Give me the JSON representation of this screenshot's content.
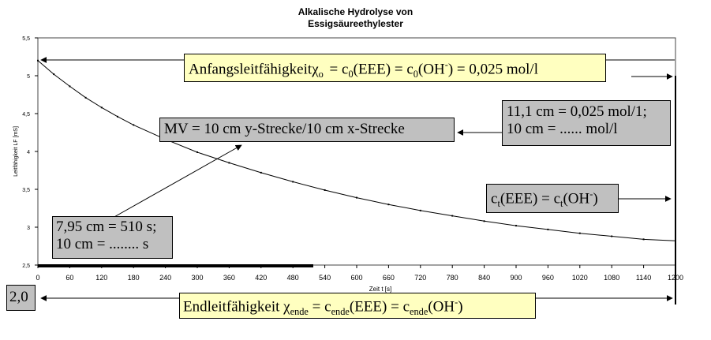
{
  "chart_data": {
    "type": "line",
    "title_lines": [
      "Alkalische Hydrolyse von",
      "Essigsäureethylester"
    ],
    "xlabel": "Zeit t [s]",
    "ylabel": "Leitfähigkeit LF [mS]",
    "xlim": [
      0,
      1200
    ],
    "ylim": [
      2.5,
      5.5
    ],
    "x_ticks": [
      "0",
      "60",
      "120",
      "180",
      "240",
      "300",
      "360",
      "420",
      "480",
      "540",
      "600",
      "660",
      "720",
      "780",
      "840",
      "900",
      "960",
      "1020",
      "1080",
      "1140",
      "1200"
    ],
    "y_ticks": [
      "2,5",
      "3",
      "3,5",
      "4",
      "4,5",
      "5",
      "5,5"
    ],
    "grid": false,
    "legend": "none",
    "series": [
      {
        "x": [
          0,
          30,
          60,
          90,
          120,
          150,
          180,
          240,
          300,
          360,
          420,
          480,
          540,
          600,
          660,
          720,
          780,
          840,
          900,
          960,
          1020,
          1080,
          1140,
          1200
        ],
        "y": [
          5.2,
          5.02,
          4.86,
          4.71,
          4.58,
          4.46,
          4.35,
          4.16,
          3.99,
          3.85,
          3.72,
          3.6,
          3.49,
          3.39,
          3.3,
          3.22,
          3.15,
          3.08,
          3.02,
          2.97,
          2.92,
          2.88,
          2.84,
          2.82
        ]
      }
    ]
  },
  "annotations": {
    "start": {
      "prefix": "Anfangsleitfähigkeit",
      "chi": "χ",
      "chi_sub": "o",
      "eq1": " = c",
      "sub1": "0",
      "eq2": "(EEE) = c",
      "sub2": "0",
      "eq3": "(OH",
      "sup": "-",
      "eq4": ") = 0,025 mol/l"
    },
    "calib_y": {
      "line1": "11,1 cm = 0,025 mol/1;",
      "line2": "10 cm = ...... mol/l"
    },
    "mv": "MV = 10 cm y-Strecke/10 cm x-Strecke",
    "ct": {
      "c1": "c",
      "sub1": "t",
      "mid": "(EEE) = c",
      "sub2": "t",
      "oh": "(OH",
      "sup": "-",
      "end": ")"
    },
    "calib_x": {
      "line1": "7,95 cm = 510 s;",
      "line2": "10 cm = ........ s"
    },
    "small_box": "2,0",
    "end": {
      "prefix": "Endleitfähigkeit ",
      "chi": "χ",
      "chi_sub": "ende",
      "eq1": " = c",
      "sub1": "ende",
      "eq2": "(EEE) = c",
      "sub2": "ende",
      "eq3": "(OH",
      "sup": "-",
      "eq4": ")"
    }
  },
  "colors": {
    "yellow_box": "#ffffc0",
    "gray_box": "#c0c0c0",
    "axis": "#000000"
  }
}
